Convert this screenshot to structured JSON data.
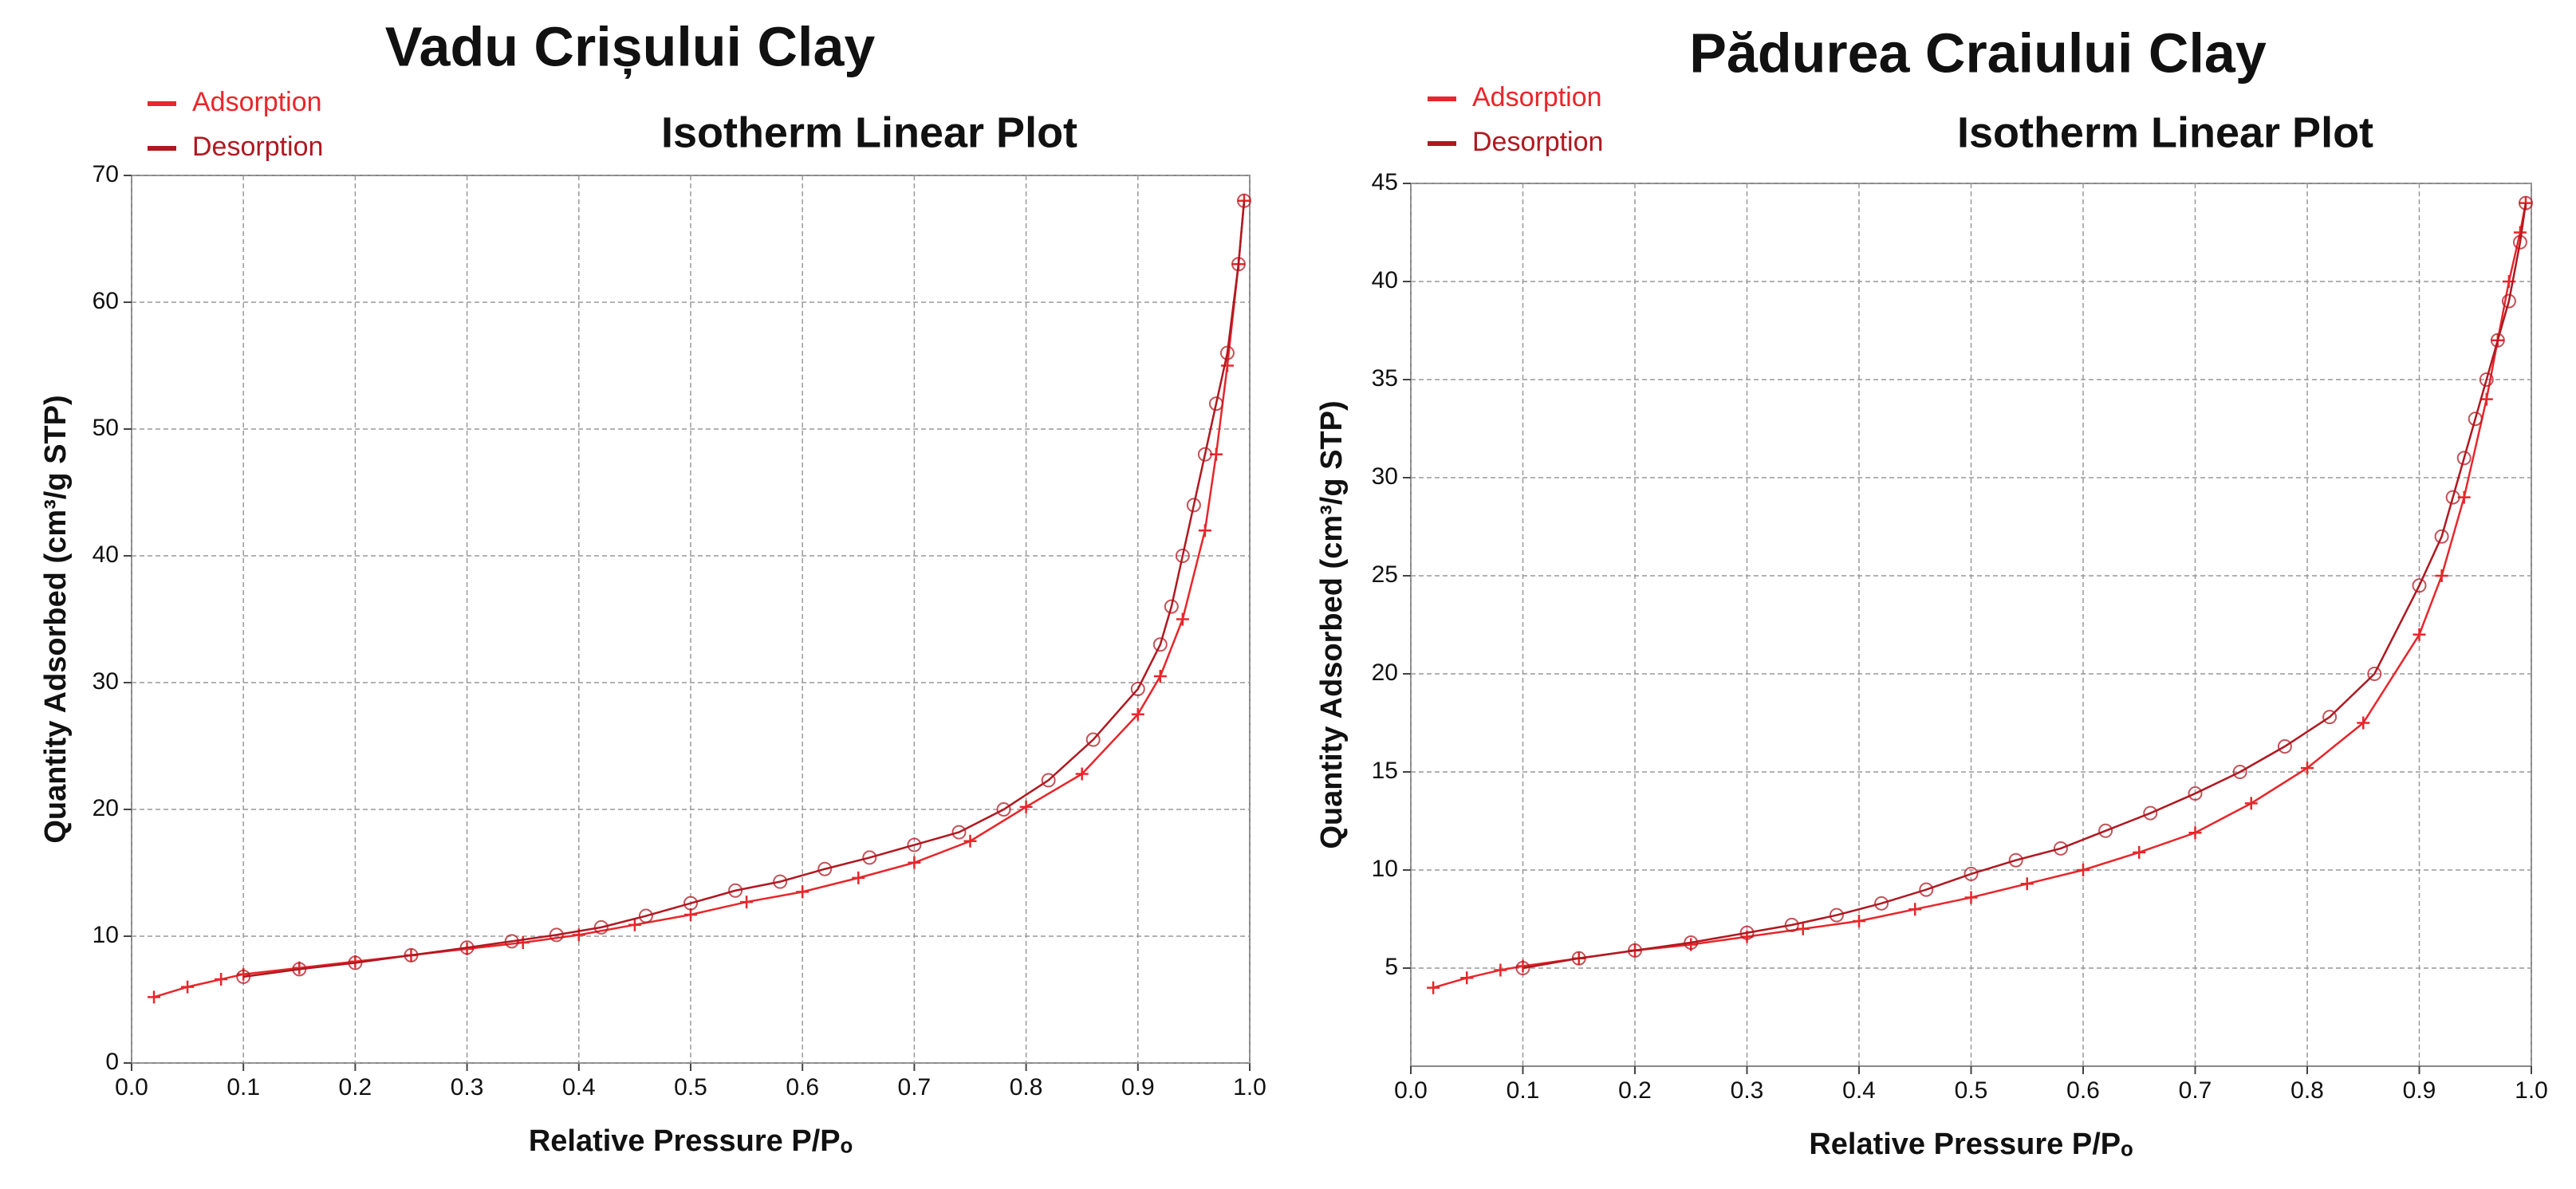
{
  "chart_data": [
    {
      "type": "line",
      "title": "Vadu Crișului Clay",
      "subtitle": "Isotherm Linear Plot",
      "x_label": "Relative Pressure P/Pₒ",
      "y_label": "Quantity Adsorbed (cm³/g STP)",
      "xlim": [
        0,
        1
      ],
      "xticks": [
        {
          "value": 0,
          "label": "0.0"
        },
        0.1,
        0.2,
        0.3,
        0.4,
        0.5,
        0.6,
        0.7,
        0.8,
        0.9,
        {
          "value": 1,
          "label": "1.0"
        }
      ],
      "ylim": [
        0,
        70
      ],
      "yticks": [
        0,
        10,
        20,
        30,
        40,
        50,
        60,
        70
      ],
      "grid": true,
      "series": [
        {
          "name": "Adsorption",
          "color": "#e8262b",
          "marker": "plus",
          "x": [
            0.02,
            0.05,
            0.08,
            0.1,
            0.15,
            0.2,
            0.25,
            0.3,
            0.35,
            0.4,
            0.45,
            0.5,
            0.55,
            0.6,
            0.65,
            0.7,
            0.75,
            0.8,
            0.85,
            0.9,
            0.92,
            0.94,
            0.96,
            0.97,
            0.98,
            0.99,
            0.995
          ],
          "values": [
            5.2,
            6.0,
            6.6,
            7.0,
            7.5,
            8.0,
            8.5,
            9.0,
            9.5,
            10.1,
            10.9,
            11.7,
            12.7,
            13.5,
            14.6,
            15.8,
            17.5,
            20.2,
            22.8,
            27.5,
            30.5,
            35,
            42,
            48,
            55,
            63,
            68
          ]
        },
        {
          "name": "Desorption",
          "color": "#b01820",
          "marker": "circle",
          "x": [
            0.995,
            0.99,
            0.98,
            0.97,
            0.96,
            0.95,
            0.94,
            0.93,
            0.92,
            0.9,
            0.86,
            0.82,
            0.78,
            0.74,
            0.7,
            0.66,
            0.62,
            0.58,
            0.54,
            0.5,
            0.46,
            0.42,
            0.38,
            0.34,
            0.3,
            0.25,
            0.2,
            0.15,
            0.1
          ],
          "values": [
            68,
            63,
            56,
            52,
            48,
            44,
            40,
            36,
            33,
            29.5,
            25.5,
            22.3,
            20,
            18.2,
            17.2,
            16.2,
            15.3,
            14.3,
            13.6,
            12.6,
            11.6,
            10.7,
            10.1,
            9.6,
            9.1,
            8.5,
            7.9,
            7.4,
            6.8
          ]
        }
      ]
    },
    {
      "type": "line",
      "title": "Pădurea Craiului Clay",
      "subtitle": "Isotherm Linear Plot",
      "x_label": "Relative Pressure P/Pₒ",
      "y_label": "Quantity Adsorbed (cm³/g STP)",
      "xlim": [
        0,
        1
      ],
      "xticks": [
        {
          "value": 0,
          "label": "0.0"
        },
        0.1,
        0.2,
        0.3,
        0.4,
        0.5,
        0.6,
        0.7,
        0.8,
        0.9,
        {
          "value": 1,
          "label": "1.0"
        }
      ],
      "ylim": [
        0,
        45
      ],
      "yticks": [
        5,
        10,
        15,
        20,
        25,
        30,
        35,
        40,
        45
      ],
      "grid": true,
      "series": [
        {
          "name": "Adsorption",
          "color": "#e8262b",
          "marker": "plus",
          "x": [
            0.02,
            0.05,
            0.08,
            0.1,
            0.15,
            0.2,
            0.25,
            0.3,
            0.35,
            0.4,
            0.45,
            0.5,
            0.55,
            0.6,
            0.65,
            0.7,
            0.75,
            0.8,
            0.85,
            0.9,
            0.92,
            0.94,
            0.96,
            0.97,
            0.98,
            0.99,
            0.995
          ],
          "values": [
            4.0,
            4.5,
            4.9,
            5.1,
            5.5,
            5.9,
            6.2,
            6.6,
            7.0,
            7.4,
            8.0,
            8.6,
            9.3,
            10.0,
            10.9,
            11.9,
            13.4,
            15.2,
            17.5,
            22,
            25,
            29,
            34,
            37,
            40,
            42.5,
            44
          ]
        },
        {
          "name": "Desorption",
          "color": "#b01820",
          "marker": "circle",
          "x": [
            0.995,
            0.99,
            0.98,
            0.97,
            0.96,
            0.95,
            0.94,
            0.93,
            0.92,
            0.9,
            0.86,
            0.82,
            0.78,
            0.74,
            0.7,
            0.66,
            0.62,
            0.58,
            0.54,
            0.5,
            0.46,
            0.42,
            0.38,
            0.34,
            0.3,
            0.25,
            0.2,
            0.15,
            0.1
          ],
          "values": [
            44,
            42,
            39,
            37,
            35,
            33,
            31,
            29,
            27,
            24.5,
            20,
            17.8,
            16.3,
            15,
            13.9,
            12.9,
            12,
            11.1,
            10.5,
            9.8,
            9.0,
            8.3,
            7.7,
            7.2,
            6.8,
            6.3,
            5.9,
            5.5,
            5.0
          ]
        }
      ]
    }
  ]
}
